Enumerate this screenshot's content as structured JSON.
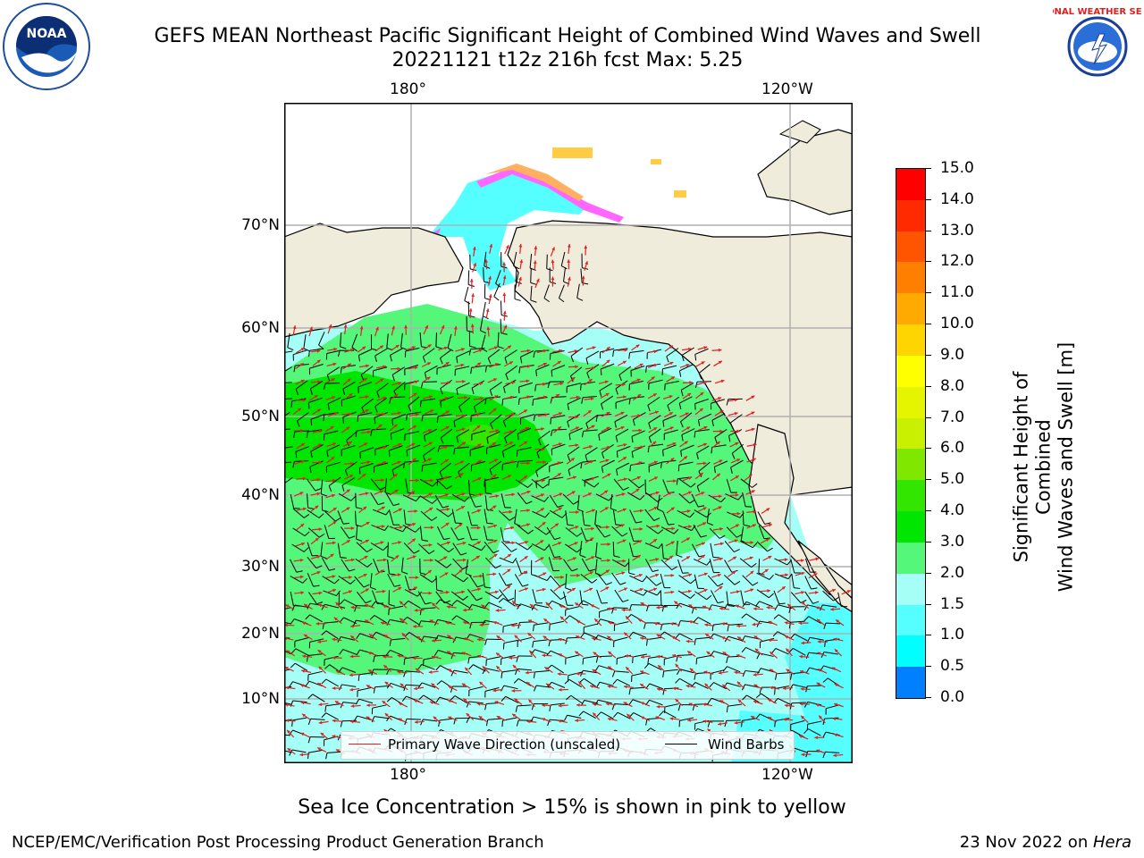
{
  "title": {
    "line1": "GEFS MEAN Northeast Pacific Significant Height of Combined Wind Waves and Swell",
    "line2": "20221121 t12z 216h fcst   Max: 5.25"
  },
  "logos": {
    "left": {
      "text": "NOAA",
      "icon": "noaa-logo"
    },
    "right": {
      "text": "NATIONAL WEATHER SERVICE",
      "icon": "nws-logo"
    }
  },
  "map": {
    "lon_labels_top": [
      "180°",
      "120°W"
    ],
    "lon_labels_bottom": [
      "180°",
      "120°W"
    ],
    "lat_labels": [
      "70°N",
      "60°N",
      "50°N",
      "40°N",
      "30°N",
      "20°N",
      "10°N"
    ],
    "legend": {
      "wave_direction": "Primary Wave Direction (unscaled)",
      "wind_barbs": "Wind Barbs"
    },
    "colors": {
      "land": "#efecdc",
      "wave_direction_arrow": "#e02020",
      "wind_barb": "#000000"
    }
  },
  "colorbar": {
    "label_line1": "Significant Height of Combined",
    "label_line2": "Wind Waves and Swell [m]",
    "ticks": [
      "15.0",
      "14.0",
      "13.0",
      "12.0",
      "11.0",
      "10.0",
      "9.0",
      "8.0",
      "7.0",
      "6.0",
      "5.0",
      "4.0",
      "3.0",
      "2.0",
      "1.5",
      "1.0",
      "0.5",
      "0.0"
    ],
    "colors": [
      "#ff0000",
      "#ff2a00",
      "#ff5500",
      "#ff8000",
      "#ffaa00",
      "#ffd500",
      "#ffff00",
      "#e5f500",
      "#c8f000",
      "#80e800",
      "#33e600",
      "#00e600",
      "#55f77a",
      "#a6fff7",
      "#55ffff",
      "#00ffff",
      "#0080ff",
      "#0000ff"
    ]
  },
  "caption": "Sea Ice Concentration > 15% is shown in pink to yellow",
  "footer": {
    "left": "NCEP/EMC/Verification Post Processing Product Generation Branch",
    "right_date": "23 Nov 2022 on ",
    "right_host": "Hera"
  }
}
